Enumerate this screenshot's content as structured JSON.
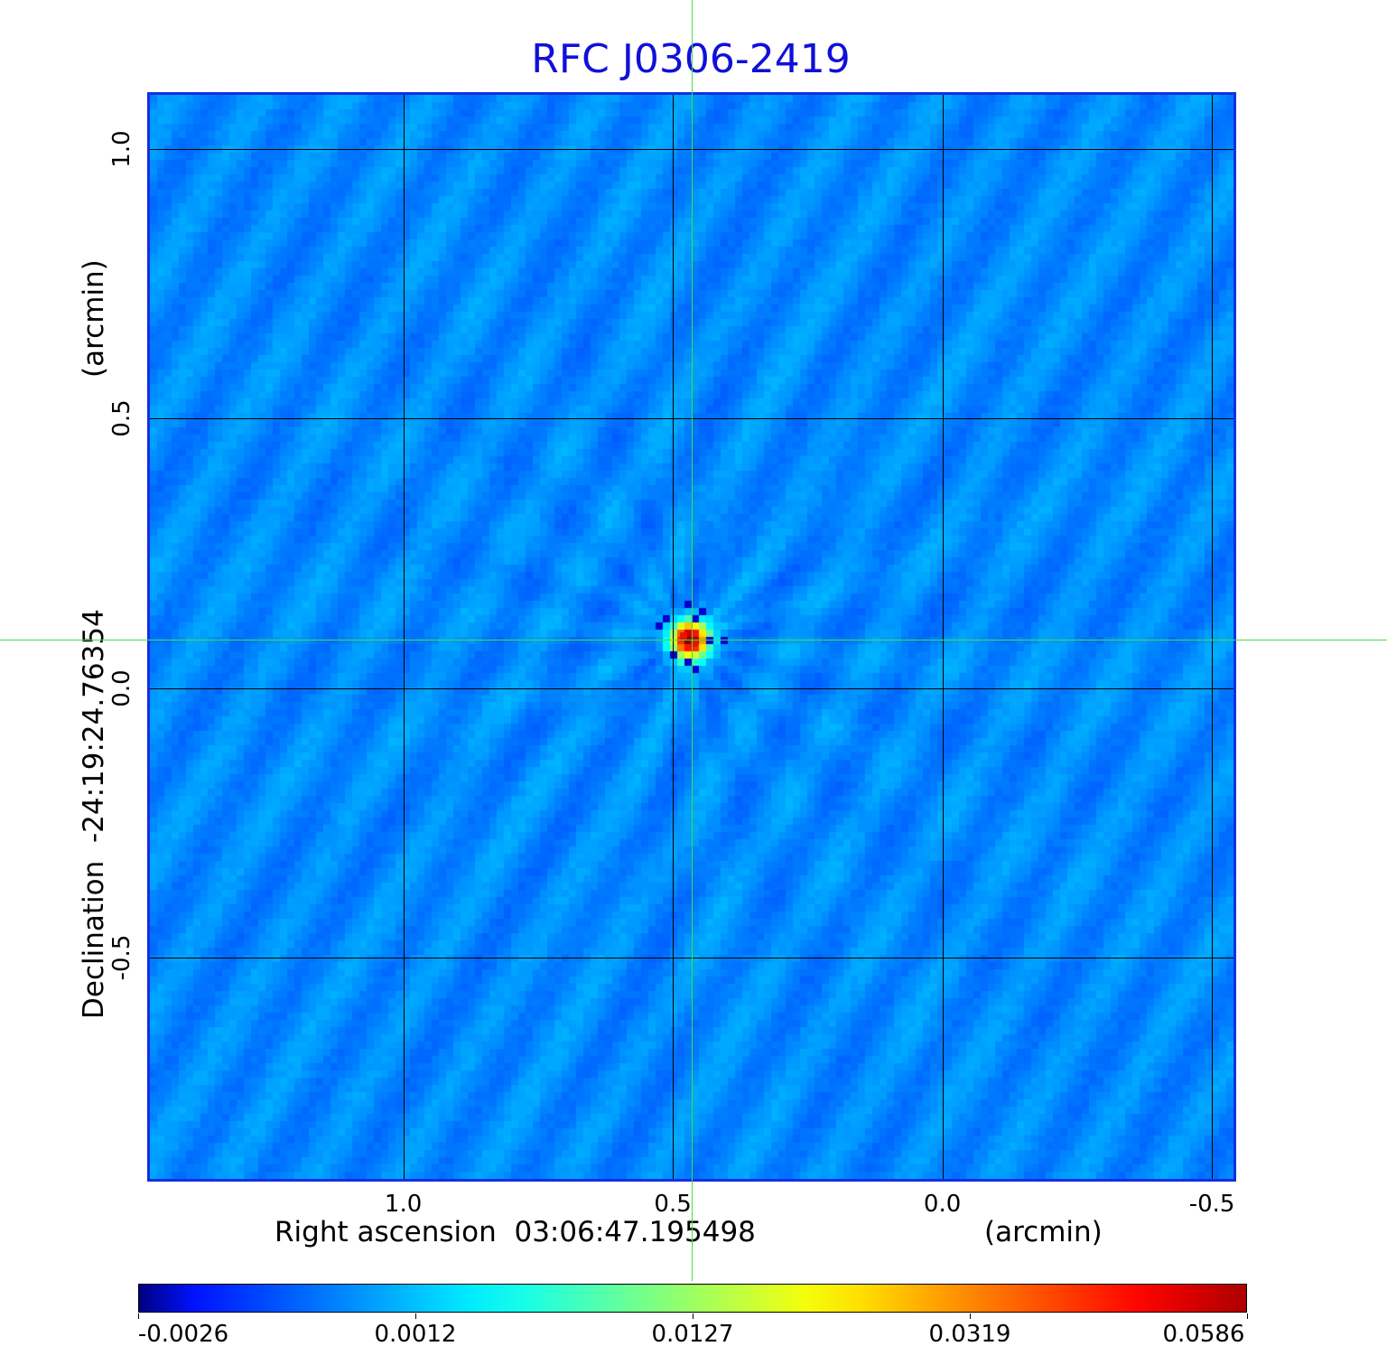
{
  "chart_data": {
    "type": "heatmap",
    "title": "RFC J0306-2419",
    "xlabel": "Right ascension  03:06:47.195498",
    "xunit": "(arcmin)",
    "ylabel": "Declination  -24:19:24.76354",
    "yunit": "(arcmin)",
    "x_ticks": [
      "1.0",
      "0.5",
      "0.0",
      "-0.5"
    ],
    "y_ticks": [
      "1.0",
      "0.5",
      "0.0",
      "-0.5"
    ],
    "x_tick_values": [
      1.0,
      0.5,
      0.0,
      -0.5
    ],
    "y_tick_values": [
      1.0,
      0.5,
      0.0,
      -0.5
    ],
    "xlim": [
      1.47,
      -0.54
    ],
    "ylim": [
      -0.91,
      1.1
    ],
    "grid": true,
    "colormap": "jet",
    "colorbar": {
      "labels": [
        "-0.0026",
        "0.0012",
        "0.0127",
        "0.0319",
        "0.0586"
      ],
      "values": [
        -0.0026,
        0.0012,
        0.0127,
        0.0319,
        0.0586
      ]
    },
    "source": {
      "x": 0.47,
      "y": 0.09,
      "peak": 0.0586
    },
    "crosshair": {
      "x": 0.47,
      "y": 0.09,
      "color": "#40e040"
    },
    "background_level": 0.0012
  },
  "colors": {
    "title": "#1010d8",
    "frame": "#1330e0",
    "grid": "#000000",
    "crosshair": "#40e040"
  }
}
